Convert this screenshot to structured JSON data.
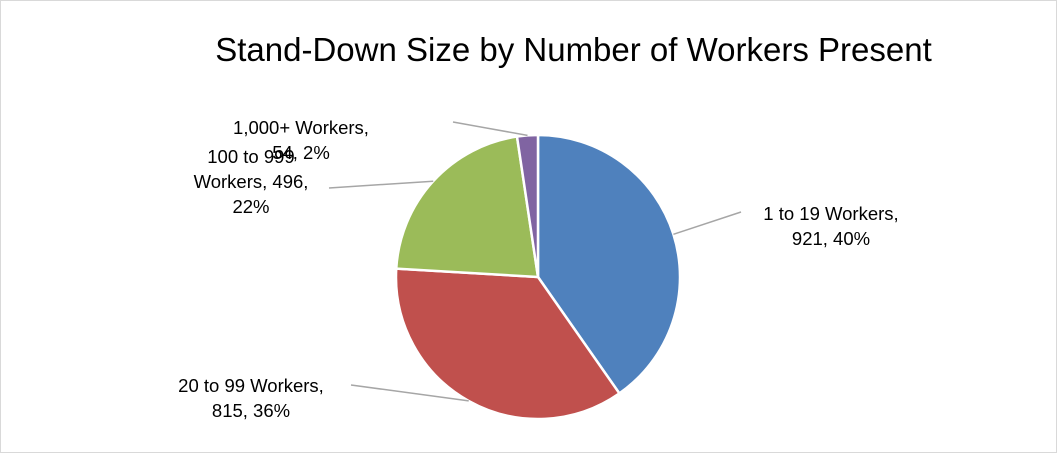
{
  "chart_data": {
    "type": "pie",
    "title": "Stand-Down Size by Number of Workers Present",
    "start_angle_deg": 0,
    "direction": "clockwise",
    "slices": [
      {
        "name": "1 to 19 Workers",
        "value": 921,
        "percent": "40%",
        "color": "#4f81bd",
        "label_lines": [
          "1 to 19 Workers,",
          "921, 40%"
        ]
      },
      {
        "name": "20 to 99 Workers",
        "value": 815,
        "percent": "36%",
        "color": "#c0504d",
        "label_lines": [
          "20 to 99 Workers,",
          "815, 36%"
        ]
      },
      {
        "name": "100 to 999 Workers",
        "value": 496,
        "percent": "22%",
        "color": "#9bbb59",
        "label_lines": [
          "100 to 999",
          "Workers, 496,",
          "22%"
        ]
      },
      {
        "name": "1,000+ Workers",
        "value": 54,
        "percent": "2%",
        "color": "#8064a2",
        "label_lines": [
          "1,000+ Workers,",
          "54, 2%"
        ]
      }
    ],
    "legend": "none",
    "data_labels": "outside-with-leader-lines"
  }
}
